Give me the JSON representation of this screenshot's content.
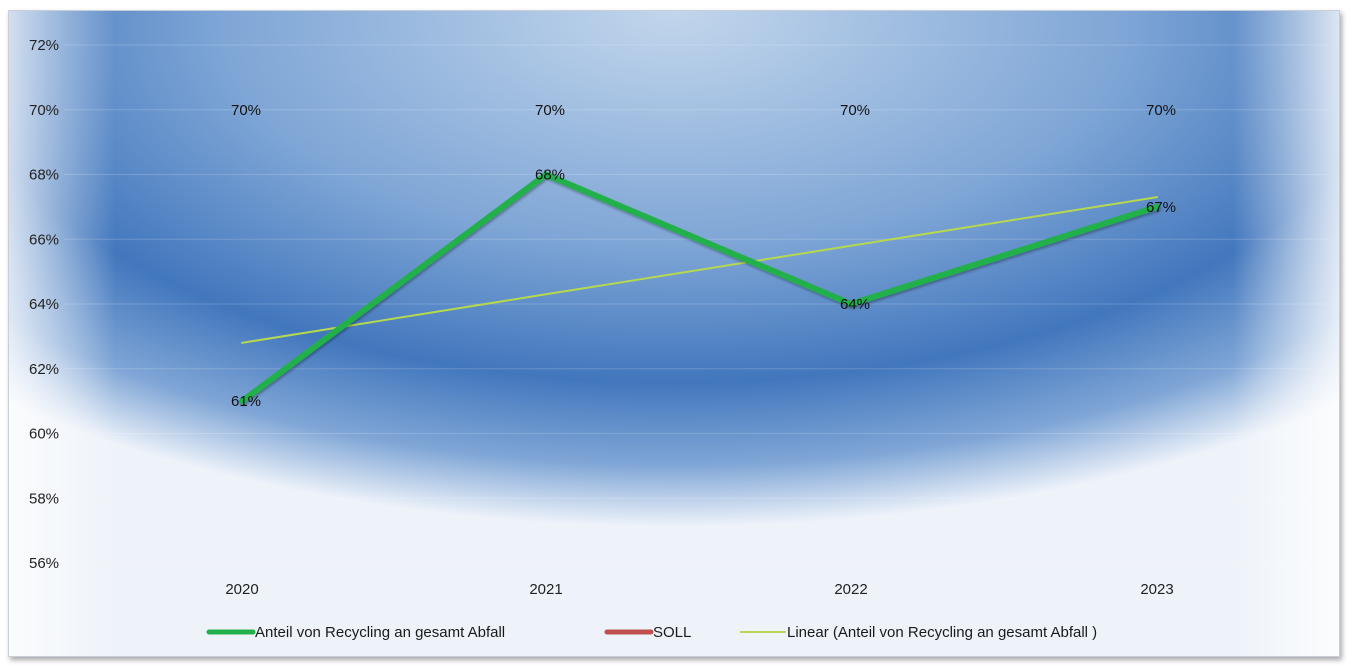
{
  "chart_data": {
    "type": "line",
    "categories": [
      "2020",
      "2021",
      "2022",
      "2023"
    ],
    "series": [
      {
        "name": "Anteil von Recycling an gesamt Abfall",
        "values": [
          61,
          68,
          64,
          67
        ],
        "color": "#22b04b",
        "data_labels": [
          "61%",
          "68%",
          "64%",
          "67%"
        ]
      },
      {
        "name": "SOLL",
        "values": [
          70,
          70,
          70,
          70
        ],
        "color": "#c0504d",
        "data_labels": [
          "70%",
          "70%",
          "70%",
          "70%"
        ]
      },
      {
        "name": "Linear (Anteil von Recycling an gesamt Abfall )",
        "values": [
          62.8,
          64.3,
          65.8,
          67.3
        ],
        "color": "#b5d84f",
        "trendline": true
      }
    ],
    "y_ticks": [
      "72%",
      "70%",
      "68%",
      "66%",
      "64%",
      "62%",
      "60%",
      "58%",
      "56%"
    ],
    "ylim": [
      56,
      72
    ],
    "y_unit": "%",
    "grid": true,
    "legend_position": "bottom",
    "background": "#4a7fc0"
  }
}
